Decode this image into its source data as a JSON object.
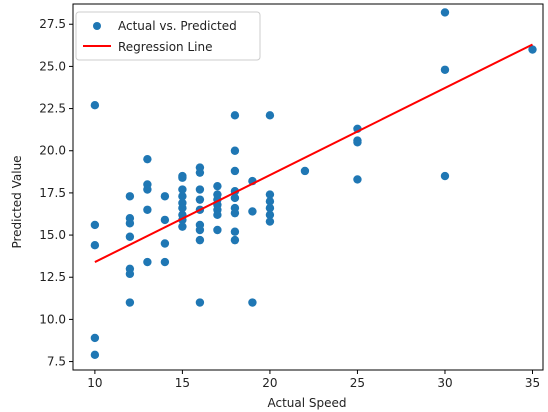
{
  "chart_data": {
    "type": "scatter",
    "xlabel": "Actual Speed",
    "ylabel": "Predicted Value",
    "xlim": [
      8.75,
      35.6
    ],
    "ylim": [
      7.0,
      28.7
    ],
    "x_ticks": [
      10,
      15,
      20,
      25,
      30,
      35
    ],
    "x_tick_labels": [
      "10",
      "15",
      "20",
      "25",
      "30",
      "35"
    ],
    "y_ticks": [
      7.5,
      10.0,
      12.5,
      15.0,
      17.5,
      20.0,
      22.5,
      25.0,
      27.5
    ],
    "y_tick_labels": [
      "7.5",
      "10.0",
      "12.5",
      "15.0",
      "17.5",
      "20.0",
      "22.5",
      "25.0",
      "27.5"
    ],
    "grid": false,
    "legend_position": "top-left",
    "series": [
      {
        "name": "Actual vs. Predicted",
        "kind": "scatter",
        "color": "#1f77b4",
        "points": [
          [
            10,
            22.7
          ],
          [
            10,
            15.6
          ],
          [
            10,
            14.4
          ],
          [
            10,
            8.9
          ],
          [
            10,
            7.9
          ],
          [
            12,
            17.3
          ],
          [
            12,
            16.0
          ],
          [
            12,
            15.7
          ],
          [
            12,
            14.9
          ],
          [
            12,
            13.0
          ],
          [
            12,
            12.7
          ],
          [
            12,
            11.0
          ],
          [
            13,
            19.5
          ],
          [
            13,
            18.0
          ],
          [
            13,
            17.7
          ],
          [
            13,
            16.5
          ],
          [
            13,
            13.4
          ],
          [
            14,
            17.3
          ],
          [
            14,
            15.9
          ],
          [
            14,
            14.5
          ],
          [
            14,
            13.4
          ],
          [
            15,
            18.5
          ],
          [
            15,
            18.4
          ],
          [
            15,
            17.7
          ],
          [
            15,
            17.3
          ],
          [
            15,
            16.9
          ],
          [
            15,
            16.6
          ],
          [
            15,
            16.2
          ],
          [
            15,
            15.9
          ],
          [
            15,
            15.5
          ],
          [
            16,
            19.0
          ],
          [
            16,
            18.7
          ],
          [
            16,
            17.7
          ],
          [
            16,
            17.1
          ],
          [
            16,
            16.5
          ],
          [
            16,
            15.6
          ],
          [
            16,
            15.3
          ],
          [
            16,
            14.7
          ],
          [
            16,
            11.0
          ],
          [
            17,
            17.9
          ],
          [
            17,
            17.4
          ],
          [
            17,
            17.1
          ],
          [
            17,
            16.8
          ],
          [
            17,
            16.5
          ],
          [
            17,
            16.2
          ],
          [
            17,
            15.3
          ],
          [
            18,
            22.1
          ],
          [
            18,
            20.0
          ],
          [
            18,
            18.8
          ],
          [
            18,
            17.6
          ],
          [
            18,
            17.2
          ],
          [
            18,
            16.6
          ],
          [
            18,
            16.3
          ],
          [
            18,
            15.2
          ],
          [
            18,
            14.7
          ],
          [
            19,
            18.2
          ],
          [
            19,
            16.4
          ],
          [
            19,
            11.0
          ],
          [
            20,
            22.1
          ],
          [
            20,
            17.4
          ],
          [
            20,
            17.0
          ],
          [
            20,
            16.6
          ],
          [
            20,
            16.2
          ],
          [
            20,
            15.8
          ],
          [
            22,
            18.8
          ],
          [
            25,
            21.3
          ],
          [
            25,
            20.6
          ],
          [
            25,
            20.5
          ],
          [
            25,
            18.3
          ],
          [
            30,
            28.2
          ],
          [
            30,
            24.8
          ],
          [
            30,
            18.5
          ],
          [
            35,
            26.0
          ]
        ]
      },
      {
        "name": "Regression Line",
        "kind": "line",
        "color": "#ff0000",
        "points": [
          [
            10,
            13.4
          ],
          [
            35,
            26.3
          ]
        ]
      }
    ]
  }
}
